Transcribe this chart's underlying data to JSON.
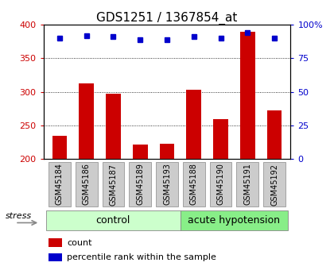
{
  "title": "GDS1251 / 1367854_at",
  "categories": [
    "GSM45184",
    "GSM45186",
    "GSM45187",
    "GSM45189",
    "GSM45193",
    "GSM45188",
    "GSM45190",
    "GSM45191",
    "GSM45192"
  ],
  "count_values": [
    235,
    313,
    297,
    222,
    223,
    303,
    259,
    390,
    272
  ],
  "percentile_values": [
    90,
    92,
    91,
    89,
    89,
    91,
    90,
    94,
    90
  ],
  "bar_color": "#cc0000",
  "dot_color": "#0000cc",
  "ylim_left": [
    200,
    400
  ],
  "ylim_right": [
    0,
    100
  ],
  "yticks_left": [
    200,
    250,
    300,
    350,
    400
  ],
  "yticks_right": [
    0,
    25,
    50,
    75,
    100
  ],
  "yticklabels_right": [
    "0",
    "25",
    "50",
    "75",
    "100%"
  ],
  "grid_values": [
    250,
    300,
    350
  ],
  "group_labels": [
    "control",
    "acute hypotension"
  ],
  "group_split": 5,
  "stress_label": "stress",
  "group_bg_color_light": "#ccffcc",
  "group_bg_color_dark": "#88ee88",
  "tick_bg_color": "#cccccc",
  "legend_count": "count",
  "legend_pct": "percentile rank within the sample",
  "title_fontsize": 11,
  "axis_fontsize": 8,
  "tick_fontsize": 7,
  "group_fontsize": 9
}
